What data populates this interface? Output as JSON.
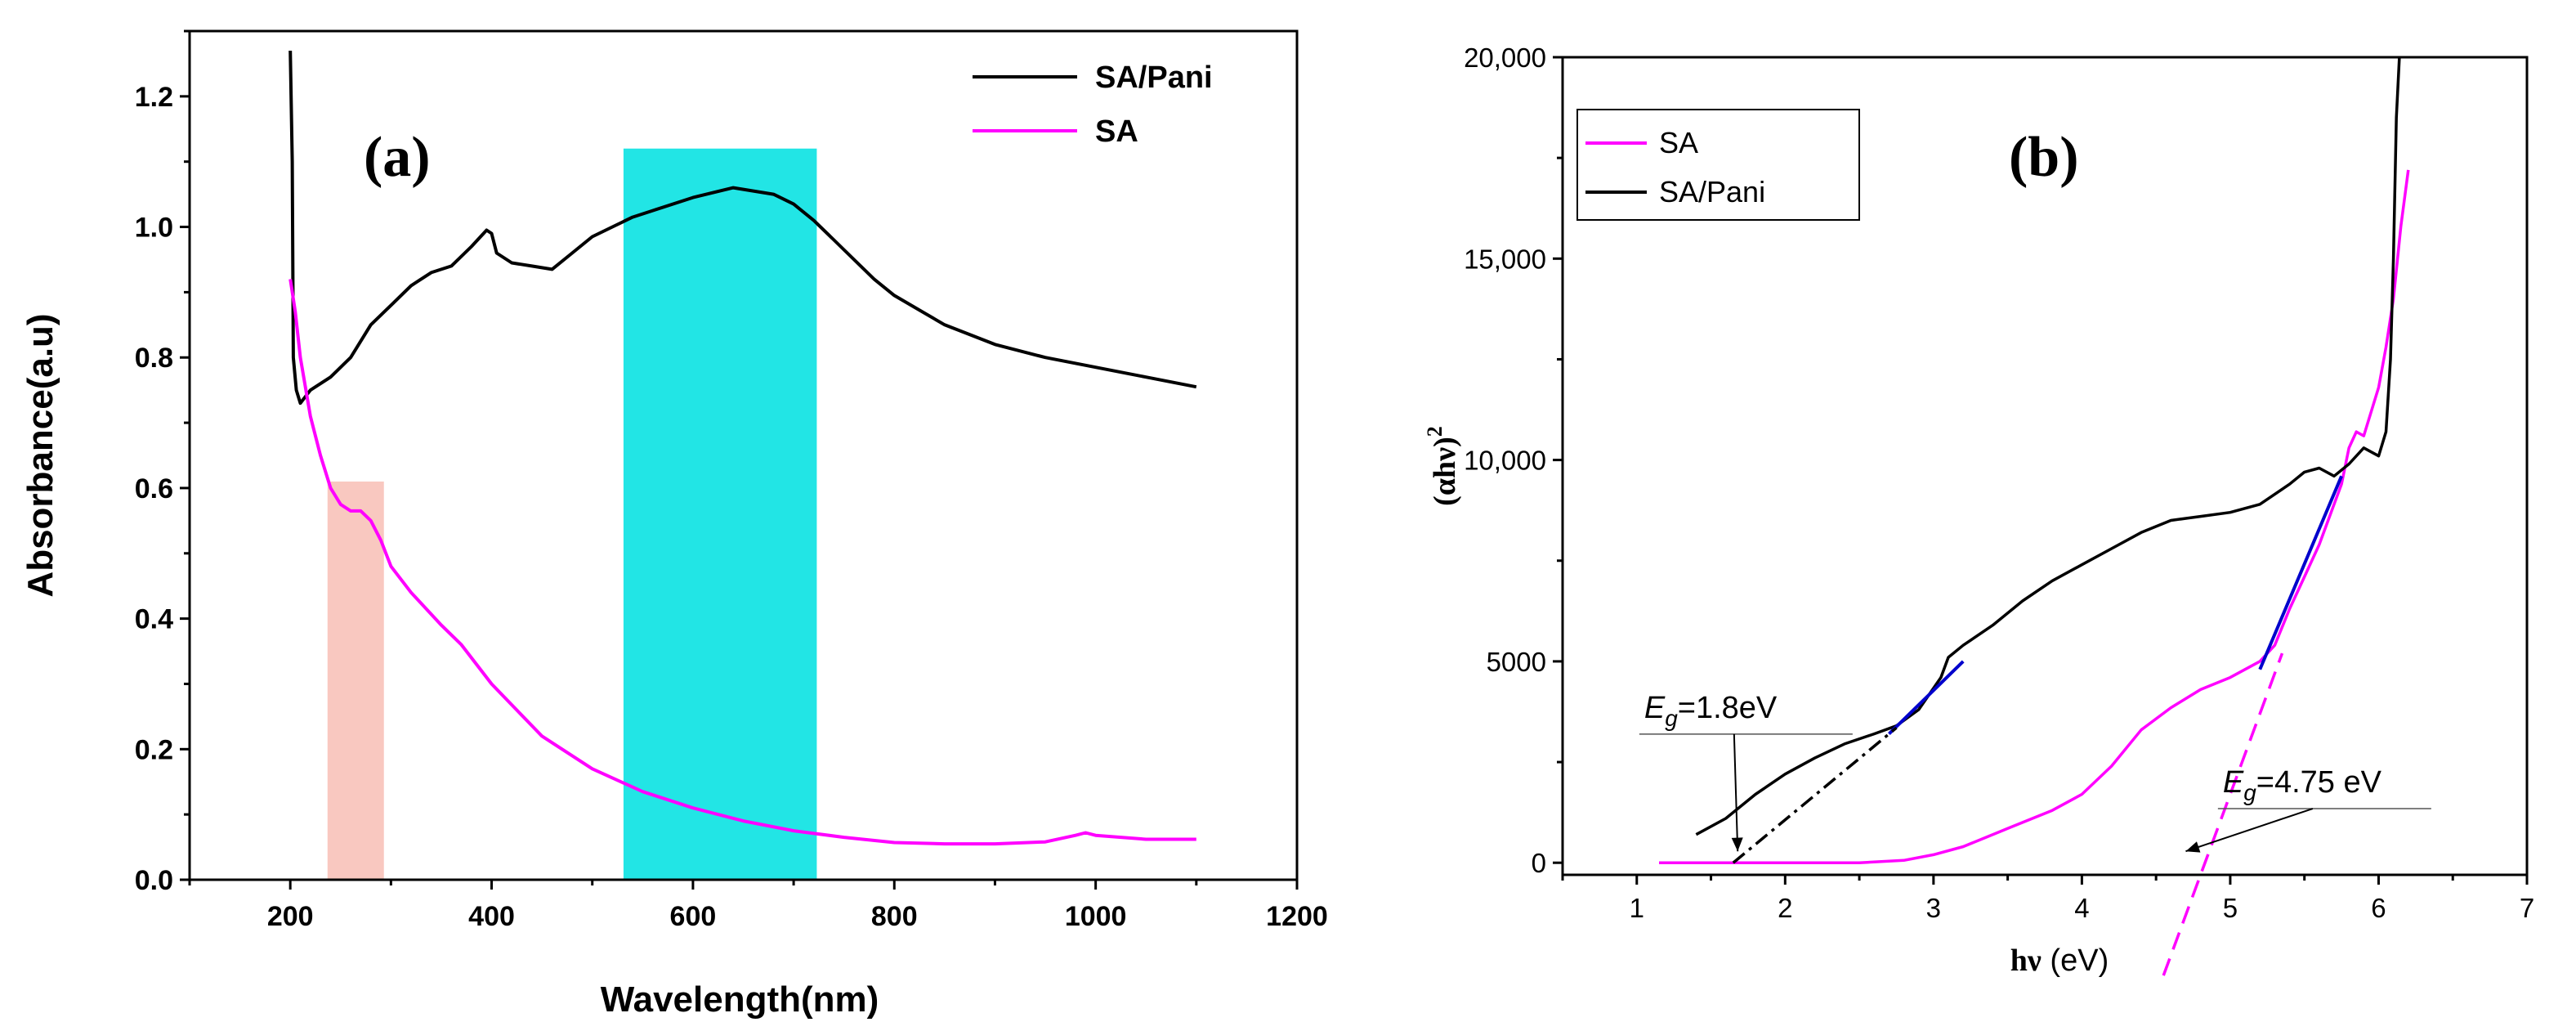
{
  "chart_data": [
    {
      "type": "line",
      "panel_label": "(a)",
      "title": "",
      "xlabel": "Wavelength(nm)",
      "ylabel": "Absorbance(a.u)",
      "xlim": [
        100,
        1200
      ],
      "ylim": [
        0,
        1.3
      ],
      "x_ticks": [
        "200",
        "400",
        "600",
        "800",
        "1000",
        "1200"
      ],
      "y_ticks": [
        "0.0",
        "0.2",
        "0.4",
        "0.6",
        "0.8",
        "1.0",
        "1.2"
      ],
      "legend_position": "top-right",
      "series": [
        {
          "name": "SA/Pani",
          "color": "#000000",
          "points": [
            [
              200,
              1.27
            ],
            [
              202,
              1.1
            ],
            [
              203,
              0.8
            ],
            [
              206,
              0.75
            ],
            [
              210,
              0.73
            ],
            [
              220,
              0.75
            ],
            [
              240,
              0.77
            ],
            [
              260,
              0.8
            ],
            [
              280,
              0.85
            ],
            [
              300,
              0.88
            ],
            [
              320,
              0.91
            ],
            [
              340,
              0.93
            ],
            [
              360,
              0.94
            ],
            [
              380,
              0.97
            ],
            [
              395,
              0.995
            ],
            [
              400,
              0.99
            ],
            [
              405,
              0.96
            ],
            [
              420,
              0.945
            ],
            [
              440,
              0.94
            ],
            [
              460,
              0.935
            ],
            [
              480,
              0.96
            ],
            [
              500,
              0.985
            ],
            [
              520,
              1.0
            ],
            [
              540,
              1.015
            ],
            [
              560,
              1.025
            ],
            [
              600,
              1.045
            ],
            [
              640,
              1.06
            ],
            [
              660,
              1.055
            ],
            [
              680,
              1.05
            ],
            [
              700,
              1.035
            ],
            [
              720,
              1.01
            ],
            [
              740,
              0.98
            ],
            [
              760,
              0.95
            ],
            [
              780,
              0.92
            ],
            [
              800,
              0.895
            ],
            [
              850,
              0.85
            ],
            [
              900,
              0.82
            ],
            [
              950,
              0.8
            ],
            [
              1000,
              0.785
            ],
            [
              1050,
              0.77
            ],
            [
              1100,
              0.755
            ]
          ]
        },
        {
          "name": "SA",
          "color": "#ff00ff",
          "points": [
            [
              200,
              0.92
            ],
            [
              205,
              0.87
            ],
            [
              210,
              0.8
            ],
            [
              220,
              0.71
            ],
            [
              230,
              0.65
            ],
            [
              240,
              0.6
            ],
            [
              250,
              0.575
            ],
            [
              260,
              0.565
            ],
            [
              270,
              0.565
            ],
            [
              280,
              0.55
            ],
            [
              290,
              0.52
            ],
            [
              300,
              0.48
            ],
            [
              320,
              0.44
            ],
            [
              350,
              0.39
            ],
            [
              370,
              0.36
            ],
            [
              400,
              0.3
            ],
            [
              450,
              0.22
            ],
            [
              500,
              0.17
            ],
            [
              550,
              0.135
            ],
            [
              600,
              0.11
            ],
            [
              650,
              0.09
            ],
            [
              700,
              0.075
            ],
            [
              750,
              0.065
            ],
            [
              800,
              0.057
            ],
            [
              850,
              0.055
            ],
            [
              900,
              0.055
            ],
            [
              950,
              0.058
            ],
            [
              980,
              0.068
            ],
            [
              990,
              0.072
            ],
            [
              1000,
              0.068
            ],
            [
              1050,
              0.062
            ],
            [
              1100,
              0.062
            ]
          ]
        }
      ],
      "shaded_regions": [
        {
          "x": [
            237,
            293
          ],
          "y": [
            0,
            0.61
          ],
          "color": "#f9c8c0"
        },
        {
          "x": [
            531,
            723
          ],
          "y": [
            0,
            1.12
          ],
          "color": "#22e5e5"
        }
      ]
    },
    {
      "type": "line",
      "panel_label": "(b)",
      "title": "",
      "xlabel": "hν (eV)",
      "ylabel": "(αhν)2",
      "xlim": [
        0.5,
        7
      ],
      "ylim": [
        -300,
        20000
      ],
      "x_ticks": [
        "1",
        "2",
        "3",
        "4",
        "5",
        "6",
        "7"
      ],
      "y_ticks": [
        "0",
        "5000",
        "10,000",
        "15,000",
        "20,000"
      ],
      "legend_position": "top-left",
      "series": [
        {
          "name": "SA",
          "color": "#ff00ff",
          "points": [
            [
              1.15,
              0
            ],
            [
              2.0,
              0
            ],
            [
              2.5,
              0
            ],
            [
              2.8,
              60
            ],
            [
              3.0,
              200
            ],
            [
              3.2,
              400
            ],
            [
              3.5,
              850
            ],
            [
              3.8,
              1300
            ],
            [
              4.0,
              1700
            ],
            [
              4.2,
              2400
            ],
            [
              4.4,
              3300
            ],
            [
              4.6,
              3850
            ],
            [
              4.8,
              4300
            ],
            [
              5.0,
              4600
            ],
            [
              5.2,
              5000
            ],
            [
              5.3,
              5400
            ],
            [
              5.4,
              6300
            ],
            [
              5.5,
              7100
            ],
            [
              5.6,
              7900
            ],
            [
              5.7,
              8900
            ],
            [
              5.75,
              9400
            ],
            [
              5.8,
              10300
            ],
            [
              5.85,
              10700
            ],
            [
              5.9,
              10600
            ],
            [
              5.95,
              11200
            ],
            [
              6.0,
              11800
            ],
            [
              6.05,
              12800
            ],
            [
              6.1,
              14000
            ],
            [
              6.15,
              15800
            ],
            [
              6.2,
              17200
            ]
          ]
        },
        {
          "name": "SA/Pani",
          "color": "#000000",
          "points": [
            [
              1.4,
              700
            ],
            [
              1.6,
              1100
            ],
            [
              1.8,
              1700
            ],
            [
              2.0,
              2200
            ],
            [
              2.2,
              2600
            ],
            [
              2.4,
              2950
            ],
            [
              2.6,
              3200
            ],
            [
              2.75,
              3400
            ],
            [
              2.9,
              3800
            ],
            [
              3.05,
              4600
            ],
            [
              3.1,
              5100
            ],
            [
              3.2,
              5400
            ],
            [
              3.4,
              5900
            ],
            [
              3.6,
              6500
            ],
            [
              3.8,
              7000
            ],
            [
              4.0,
              7400
            ],
            [
              4.2,
              7800
            ],
            [
              4.4,
              8200
            ],
            [
              4.6,
              8500
            ],
            [
              4.8,
              8600
            ],
            [
              5.0,
              8700
            ],
            [
              5.2,
              8900
            ],
            [
              5.4,
              9400
            ],
            [
              5.5,
              9700
            ],
            [
              5.6,
              9800
            ],
            [
              5.7,
              9600
            ],
            [
              5.8,
              9900
            ],
            [
              5.9,
              10300
            ],
            [
              6.0,
              10100
            ],
            [
              6.05,
              10700
            ],
            [
              6.08,
              12500
            ],
            [
              6.1,
              15000
            ],
            [
              6.12,
              18500
            ],
            [
              6.14,
              20000
            ]
          ]
        }
      ],
      "fit_lines": [
        {
          "label": "Eg=1.8eV",
          "x": [
            1.65,
            2.75
          ],
          "y": [
            0,
            3350
          ],
          "style": "dashdot",
          "color": "#000000"
        },
        {
          "label": "Eg=4.75 eV",
          "x": [
            4.55,
            5.35
          ],
          "y": [
            -2800,
            5200
          ],
          "style": "dashed",
          "color": "#ff00ff"
        }
      ],
      "tangents": [
        {
          "color": "#0000cc",
          "x": [
            2.7,
            3.2
          ],
          "y": [
            3200,
            5000
          ]
        },
        {
          "color": "#0000cc",
          "x": [
            5.2,
            5.75
          ],
          "y": [
            4800,
            9600
          ]
        }
      ],
      "annotations": [
        {
          "text": "Eg=1.8eV",
          "base": "E",
          "sub": "g",
          "rest": "=1.8eV",
          "x": 1.05,
          "y": 3600,
          "arrow_to": [
            1.68,
            0
          ]
        },
        {
          "text": "Eg=4.75 eV",
          "base": "E",
          "sub": "g",
          "rest": "=4.75 eV",
          "x": 4.95,
          "y": 1750,
          "arrow_to": [
            4.7,
            0
          ]
        }
      ]
    }
  ]
}
